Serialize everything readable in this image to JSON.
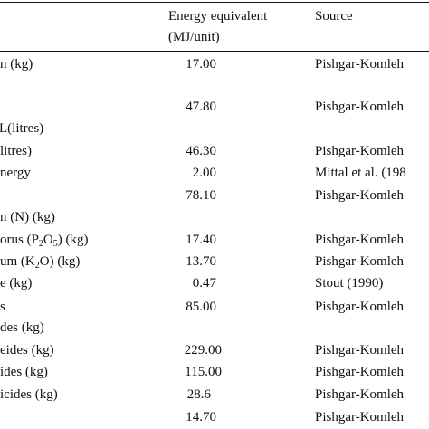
{
  "header": {
    "energy_line1": "Energy equivalent",
    "energy_line2": "(MJ/unit)",
    "source": "Source"
  },
  "rows": [
    {
      "item": "n (kg)",
      "value": "17.00",
      "source": "Pishgar-Komleh"
    },
    {
      "item": "",
      "value": "",
      "source": ""
    },
    {
      "item": "",
      "value": "47.80",
      "source": "Pishgar-Komleh"
    },
    {
      "item": "(litres)",
      "value": "",
      "source": ""
    },
    {
      "item": "litres)",
      "value": "46.30",
      "source": "Pishgar-Komleh"
    },
    {
      "item": "nergy",
      "value": "2.00",
      "source": "Mittal et al. (198"
    },
    {
      "item": "",
      "value": "78.10",
      "source": "Pishgar-Komleh"
    },
    {
      "item": "n (N) (kg)",
      "value": "",
      "source": ""
    },
    {
      "item_pre": "orus (P",
      "item_sub1": "2",
      "item_mid": "O",
      "item_sub2": "5",
      "item_post": ") (kg)",
      "value": "17.40",
      "source": "Pishgar-Komleh"
    },
    {
      "item_pre": "um (K",
      "item_sub1": "2",
      "item_mid": "O) (kg)",
      "value": "13.70",
      "source": "Pishgar-Komleh"
    },
    {
      "item": "e (kg)",
      "value": "0.47",
      "source": "Stout (1990)"
    },
    {
      "item": "s",
      "value": "85.00",
      "source": "Pishgar-Komleh"
    },
    {
      "item": "des (kg)",
      "value": "",
      "source": ""
    },
    {
      "item": "eides (kg)",
      "value": "229.00",
      "source": "Pishgar-Komleh"
    },
    {
      "item": "ides (kg)",
      "value": "115.00",
      "source": "Pishgar-Komleh"
    },
    {
      "item": "icides (kg)",
      "value": "28.6",
      "source": "Pishgar-Komleh"
    },
    {
      "item": "",
      "value": "14.70",
      "source": "Pishgar-Komleh"
    }
  ]
}
